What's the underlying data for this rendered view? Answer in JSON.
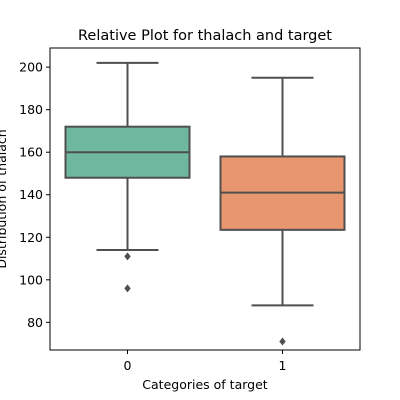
{
  "chart_data": {
    "type": "box",
    "title": "Relative Plot for thalach and target",
    "xlabel": "Categories of target",
    "ylabel": "Distribution of thalach",
    "ylim": [
      67,
      209
    ],
    "yticks": [
      80,
      100,
      120,
      140,
      160,
      180,
      200
    ],
    "categories": [
      "0",
      "1"
    ],
    "boxes": [
      {
        "category": "0",
        "q1": 148,
        "median": 160,
        "q3": 172,
        "whisker_low": 114,
        "whisker_high": 202,
        "outliers": [
          111,
          96
        ],
        "color": "#6fb89f"
      },
      {
        "category": "1",
        "q1": 123.5,
        "median": 141,
        "q3": 158,
        "whisker_low": 88,
        "whisker_high": 195,
        "outliers": [
          71
        ],
        "color": "#e8966f"
      }
    ],
    "line_color": "#4f4f4f",
    "grid": false
  }
}
